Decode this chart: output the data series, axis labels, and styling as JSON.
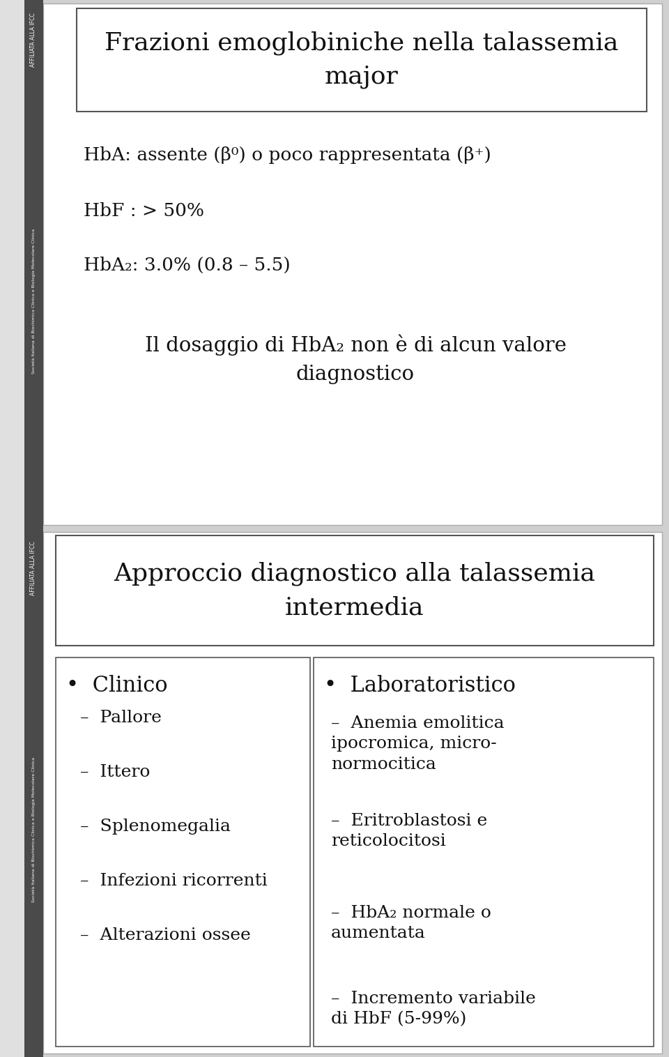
{
  "slide1": {
    "title": "Frazioni emoglobiniche nella talassemia\nmajor",
    "bullet1": "HbA: assente (β⁰) o poco rappresentata (β⁺)",
    "bullet2": "HbF : > 50%",
    "bullet3": "HbA₂: 3.0% (0.8 – 5.5)",
    "note_line1": "Il dosaggio di HbA₂ non è di alcun valore",
    "note_line2": "diagnostico"
  },
  "slide2": {
    "title": "Approccio diagnostico alla talassemia\nintermedia",
    "left_header": "Clinico",
    "left_items": [
      "Pallore",
      "Ittero",
      "Splenomegalia",
      "Infezioni ricorrenti",
      "Alterazioni ossee"
    ],
    "right_header": "Laboratoristico",
    "right_items": [
      "Anemia emolitica\nipocromica, micro-\nnormocitica",
      "Eritroblastosi e\nreticolocitosi",
      "HbA₂ normale o\naumentata",
      "Incremento variabile\ndi HbF (5-99%)"
    ]
  },
  "outer_bg": "#d0d0d0",
  "slide_bg": "#ffffff",
  "sidebar_dark": "#4a4a4a",
  "sidebar_label_top": "AFFILIATA ALLA IFCC",
  "sidebar_label_bottom": "Società Italiana di Biochimica Clinica e Biologia Molecolare Clinica",
  "title_fontsize": 26,
  "body_fontsize": 19,
  "note_fontsize": 21,
  "header2_fontsize": 22
}
